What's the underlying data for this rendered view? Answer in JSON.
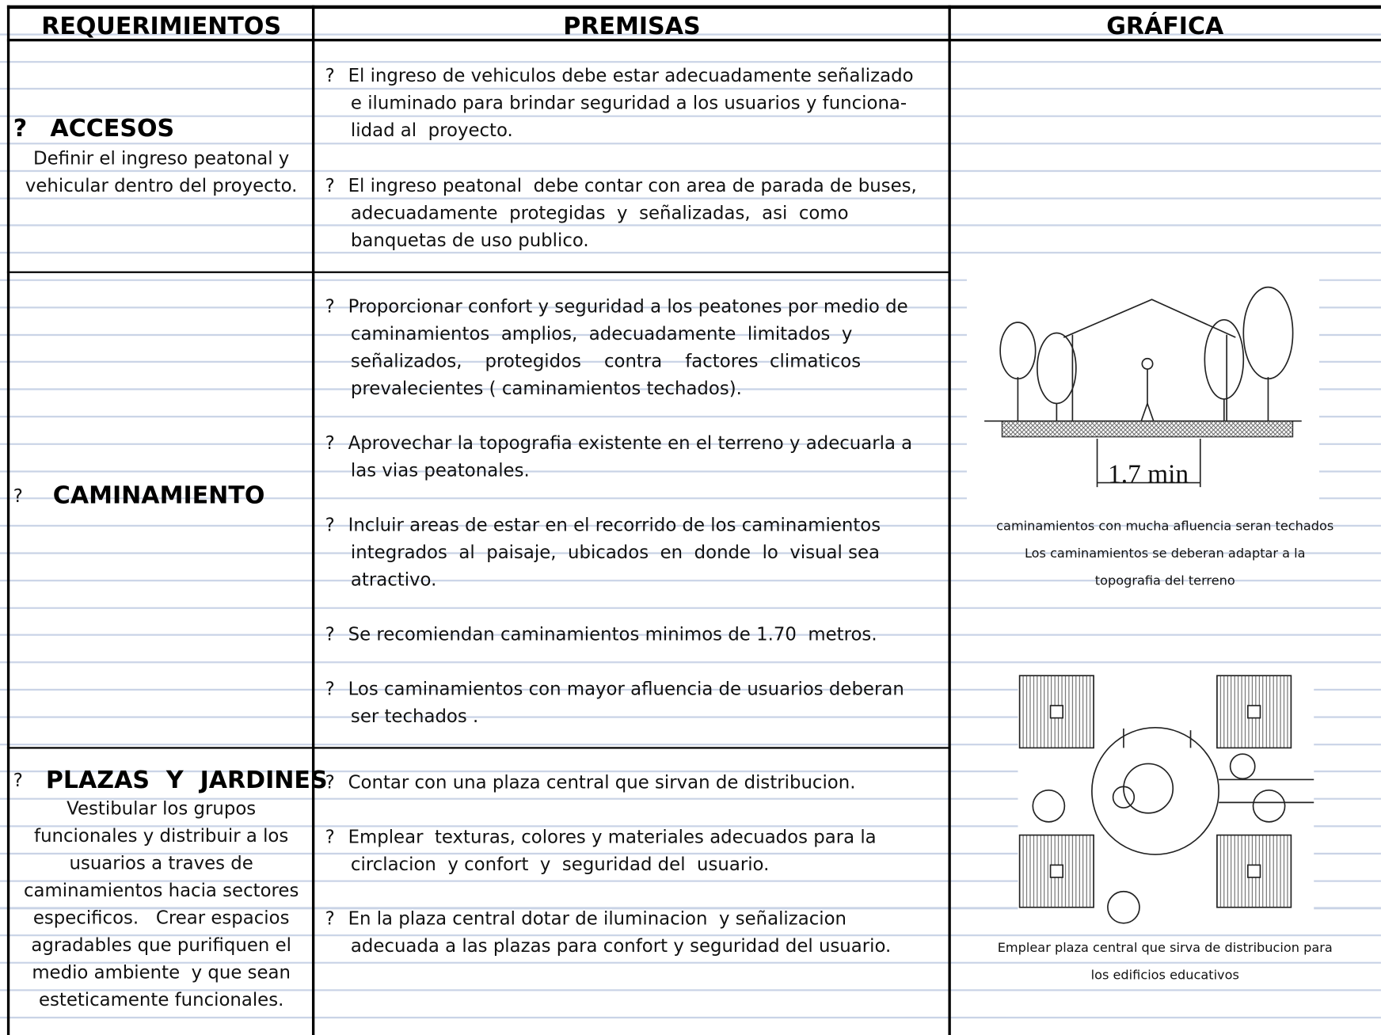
{
  "header": {
    "columns": [
      "REQUERIMIENTOS",
      "PREMISAS",
      "GRÁFICA"
    ]
  },
  "sections": [
    {
      "marker": "?",
      "title": "ACCESOS",
      "description": [
        "Definir el ingreso peatonal y",
        "vehicular dentro del proyecto."
      ],
      "premises": [
        {
          "marker": "?",
          "lines": [
            "El ingreso de vehiculos debe estar adecuadamente señalizado",
            "e iluminado para brindar seguridad a los usuarios y funciona-",
            "lidad al  proyecto."
          ]
        },
        {
          "marker": "?",
          "lines": [
            "El ingreso peatonal  debe contar con area de parada de buses,",
            "adecuadamente  protegidas  y  señalizadas,  asi  como",
            "banquetas de uso publico."
          ]
        }
      ]
    },
    {
      "marker": "?",
      "title": "CAMINAMIENTO",
      "description": [],
      "premises": [
        {
          "marker": "?",
          "lines": [
            "Proporcionar confort y seguridad a los peatones por medio de",
            "caminamientos  amplios,  adecuadamente  limitados  y",
            "señalizados,    protegidos    contra    factores  climaticos",
            "prevalecientes ( caminamientos techados)."
          ]
        },
        {
          "marker": "?",
          "lines": [
            "Aprovechar la topografia existente en el terreno y adecuarla a",
            "las vias peatonales."
          ]
        },
        {
          "marker": "?",
          "lines": [
            "Incluir areas de estar en el recorrido de los caminamientos",
            "integrados  al  paisaje,  ubicados  en  donde  lo  visual sea",
            "atractivo."
          ]
        },
        {
          "marker": "?",
          "lines": [
            "Se recomiendan caminamientos minimos de 1.70  metros."
          ]
        },
        {
          "marker": "?",
          "lines": [
            "Los caminamientos con mayor afluencia de usuarios deberan",
            "ser techados ."
          ]
        }
      ]
    },
    {
      "marker": "?",
      "title": "PLAZAS  Y  JARDINES",
      "description": [
        "Vestibular los grupos",
        "funcionales y distribuir a los",
        "usuarios a traves de",
        "caminamientos hacia sectores",
        "especificos.   Crear espacios",
        "agradables que purifiquen el",
        "medio ambiente  y que sean",
        "esteticamente funcionales."
      ],
      "premises": [
        {
          "marker": "?",
          "lines": [
            "Contar con una plaza central que sirvan de distribucion."
          ]
        },
        {
          "marker": "?",
          "lines": [
            "Emplear  texturas, colores y materiales adecuados para la",
            "circlacion  y confort  y  seguridad del  usuario."
          ]
        },
        {
          "marker": "?",
          "lines": [
            "En la plaza central dotar de iluminacion  y señalizacion",
            "adecuada a las plazas para confort y seguridad del usuario."
          ]
        }
      ]
    }
  ],
  "graphics": [
    {
      "dimension_label": "1.7 min",
      "caption": [
        "caminamientos con mucha afluencia seran techados",
        "Los caminamientos se deberan adaptar a la",
        "topografia del terreno"
      ]
    },
    {
      "caption": [
        "Emplear plaza central que sirva de distribucion para",
        "los edificios educativos"
      ]
    }
  ]
}
